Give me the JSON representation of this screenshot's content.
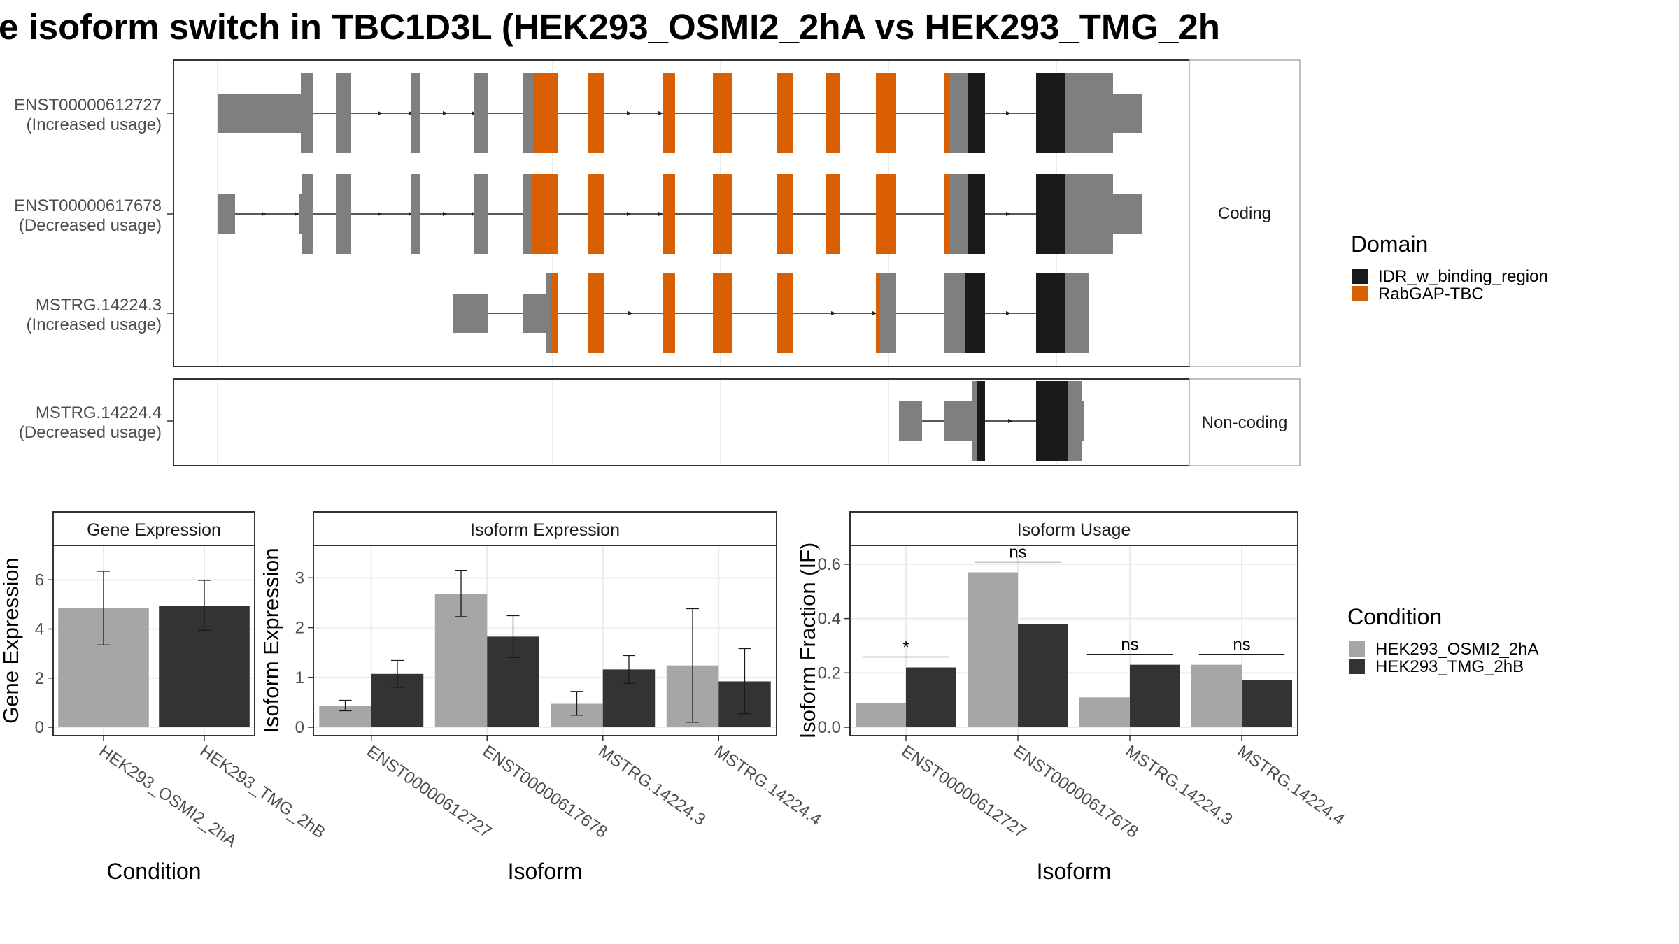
{
  "title": "e isoform switch in TBC1D3L (HEK293_OSMI2_2hA vs HEK293_TMG_2h",
  "colors": {
    "rabgap": "#d95f02",
    "idr": "#1a1a1a",
    "exon": "#7f7f7f",
    "cond1": "#a6a6a6",
    "cond2": "#333333",
    "grid": "#ebebeb",
    "frame": "#333333",
    "strip_bg": "#ffffff"
  },
  "structure": {
    "facets": [
      {
        "label": "Coding",
        "isoforms": [
          0,
          1,
          2
        ]
      },
      {
        "label": "Non-coding",
        "isoforms": [
          3
        ]
      }
    ],
    "isoforms": [
      {
        "id": "ENST00000612727",
        "usage": "(Increased usage)"
      },
      {
        "id": "ENST00000617678",
        "usage": "(Decreased usage)"
      },
      {
        "id": "MSTRG.14224.3",
        "usage": "(Increased usage)"
      },
      {
        "id": "MSTRG.14224.4",
        "usage": "(Decreased usage)"
      }
    ],
    "legend": {
      "title": "Domain",
      "items": [
        {
          "label": "IDR_w_binding_region",
          "color": "#1a1a1a"
        },
        {
          "label": "RabGAP-TBC",
          "color": "#d95f02"
        }
      ]
    }
  },
  "chart_data": [
    {
      "type": "bar",
      "title": "Gene Expression",
      "xlabel": "Condition",
      "ylabel": "Gene Expression",
      "categories": [
        "HEK293_OSMI2_2hA",
        "HEK293_TMG_2hB"
      ],
      "values": [
        4.85,
        4.95
      ],
      "error_low": [
        3.35,
        3.95
      ],
      "error_high": [
        6.35,
        5.98
      ],
      "ylim": [
        0,
        7.3
      ],
      "yticks": [
        0,
        2,
        4,
        6
      ]
    },
    {
      "type": "bar",
      "title": "Isoform Expression",
      "xlabel": "Isoform",
      "ylabel": "Isoform Expression",
      "categories": [
        "ENST00000612727",
        "ENST00000617678",
        "MSTRG.14224.3",
        "MSTRG.14224.4"
      ],
      "series": [
        {
          "name": "HEK293_OSMI2_2hA",
          "values": [
            0.43,
            2.68,
            0.47,
            1.24
          ],
          "error_low": [
            0.33,
            2.22,
            0.24,
            0.1
          ],
          "error_high": [
            0.54,
            3.15,
            0.72,
            2.38
          ]
        },
        {
          "name": "HEK293_TMG_2hB",
          "values": [
            1.07,
            1.82,
            1.16,
            0.92
          ],
          "error_low": [
            0.8,
            1.4,
            0.88,
            0.27
          ],
          "error_high": [
            1.34,
            2.24,
            1.44,
            1.58
          ]
        }
      ],
      "ylim": [
        0,
        3.6
      ],
      "yticks": [
        0,
        1,
        2,
        3
      ]
    },
    {
      "type": "bar",
      "title": "Isoform Usage",
      "xlabel": "Isoform",
      "ylabel": "Isoform Fraction (IF)",
      "categories": [
        "ENST00000612727",
        "ENST00000617678",
        "MSTRG.14224.3",
        "MSTRG.14224.4"
      ],
      "series": [
        {
          "name": "HEK293_OSMI2_2hA",
          "values": [
            0.09,
            0.57,
            0.11,
            0.23
          ]
        },
        {
          "name": "HEK293_TMG_2hB",
          "values": [
            0.22,
            0.38,
            0.23,
            0.175
          ]
        }
      ],
      "significance": [
        "*",
        "ns",
        "ns",
        "ns"
      ],
      "ylim": [
        0,
        0.66
      ],
      "yticks": [
        0.0,
        0.2,
        0.4,
        0.6
      ],
      "ytick_labels": [
        "0.0",
        "0.2",
        "0.4",
        "0.6"
      ]
    }
  ],
  "condition_legend": {
    "title": "Condition",
    "items": [
      {
        "label": "HEK293_OSMI2_2hA",
        "color": "#a6a6a6"
      },
      {
        "label": "HEK293_TMG_2hB",
        "color": "#333333"
      }
    ]
  }
}
